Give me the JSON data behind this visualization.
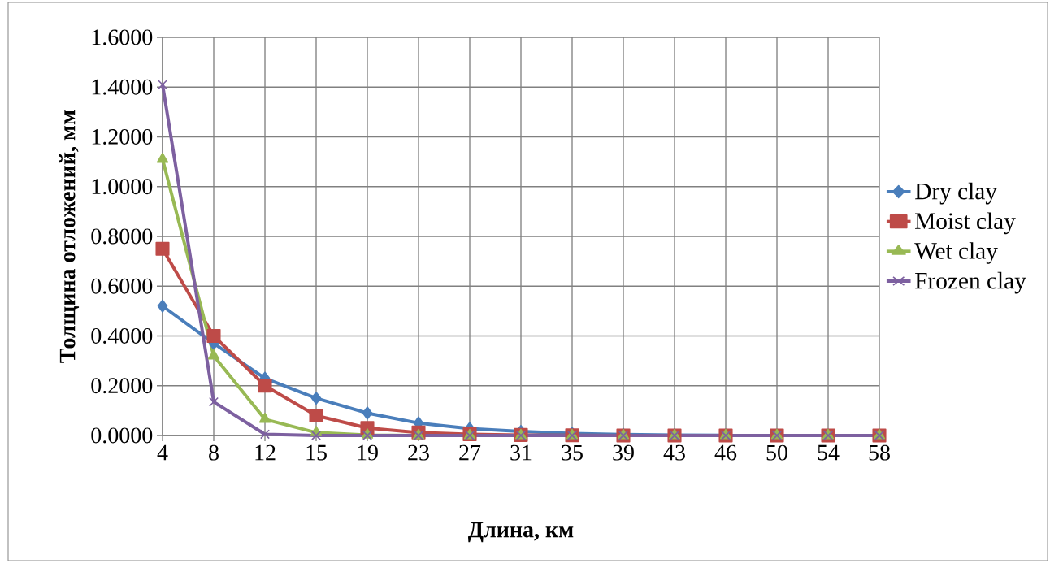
{
  "chart_data": {
    "type": "line",
    "xlabel": "Длина, км",
    "ylabel": "Толщина отложений, мм",
    "categories": [
      "4",
      "8",
      "12",
      "15",
      "19",
      "23",
      "27",
      "31",
      "35",
      "39",
      "43",
      "46",
      "50",
      "54",
      "58"
    ],
    "series": [
      {
        "name": "Dry clay",
        "color": "#4a7ebb",
        "marker": "diamond",
        "values": [
          0.52,
          0.37,
          0.23,
          0.15,
          0.09,
          0.05,
          0.028,
          0.016,
          0.008,
          0.004,
          0.002,
          0.001,
          null,
          null,
          null
        ]
      },
      {
        "name": "Moist clay",
        "color": "#be4b48",
        "marker": "square",
        "values": [
          0.75,
          0.4,
          0.2,
          0.08,
          0.03,
          0.012,
          0.005,
          0.002,
          0.001,
          0,
          0,
          0,
          0,
          0,
          0
        ]
      },
      {
        "name": "Wet clay",
        "color": "#98b954",
        "marker": "triangle",
        "values": [
          1.11,
          0.32,
          0.065,
          0.012,
          0.002,
          0,
          0,
          0,
          0,
          0,
          0,
          0,
          0,
          0,
          0
        ]
      },
      {
        "name": "Frozen clay",
        "color": "#7d60a0",
        "marker": "cross",
        "values": [
          1.41,
          0.135,
          0.005,
          0,
          0,
          0,
          0,
          0,
          0,
          0,
          0,
          0,
          0,
          0,
          0
        ]
      }
    ],
    "ylim": [
      0,
      1.6
    ],
    "yticks": [
      {
        "value": 0,
        "label": "0.0000"
      },
      {
        "value": 0.2,
        "label": "0.2000"
      },
      {
        "value": 0.4,
        "label": "0.4000"
      },
      {
        "value": 0.6,
        "label": "0.6000"
      },
      {
        "value": 0.8,
        "label": "0.8000"
      },
      {
        "value": 1.0,
        "label": "1.0000"
      },
      {
        "value": 1.2,
        "label": "1.2000"
      },
      {
        "value": 1.4,
        "label": "1.4000"
      },
      {
        "value": 1.6,
        "label": "1.6000"
      }
    ],
    "grid": true,
    "legend": "right",
    "line_style": "solid"
  }
}
